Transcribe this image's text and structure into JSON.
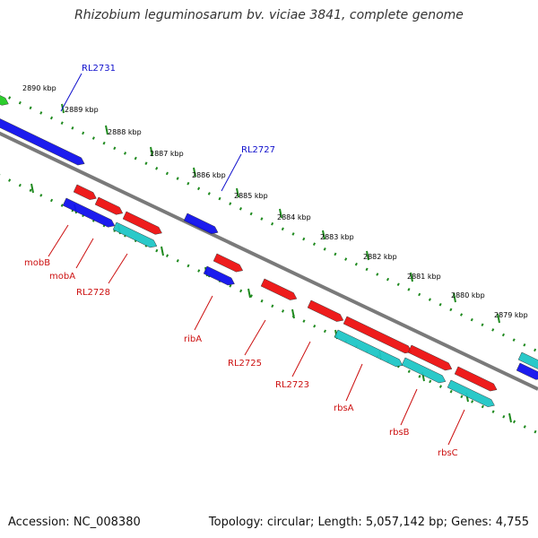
{
  "title": "Rhizobium leguminosarum bv. viciae 3841, complete genome",
  "accession_text": "Accession: NC_008380",
  "topology_text": "Topology: circular; Length: 5,057,142 bp; Genes: 4,755",
  "colors": {
    "backbone": "#7a7a7a",
    "tick_dots": "#1f8a1f",
    "gene_blue": "#1010ee",
    "gene_red": "#ee1010",
    "gene_cyan": "#1fc7c7",
    "gene_green": "#22cc22",
    "label_blue": "#1010cc",
    "label_red": "#cc1010"
  },
  "scale_labels": [
    "2890 kbp",
    "2889 kbp",
    "2888 kbp",
    "2887 kbp",
    "2886 kbp",
    "2885 kbp",
    "2884 kbp",
    "2883 kbp",
    "2882 kbp",
    "2881 kbp",
    "2880 kbp",
    "2879 kbp"
  ],
  "upper_gene_labels": [
    "RL2731",
    "RL2727"
  ],
  "lower_gene_labels": [
    "mobB",
    "mobA",
    "RL2728",
    "ribA",
    "RL2725",
    "RL2723",
    "rbsA",
    "rbsB",
    "rbsC"
  ]
}
